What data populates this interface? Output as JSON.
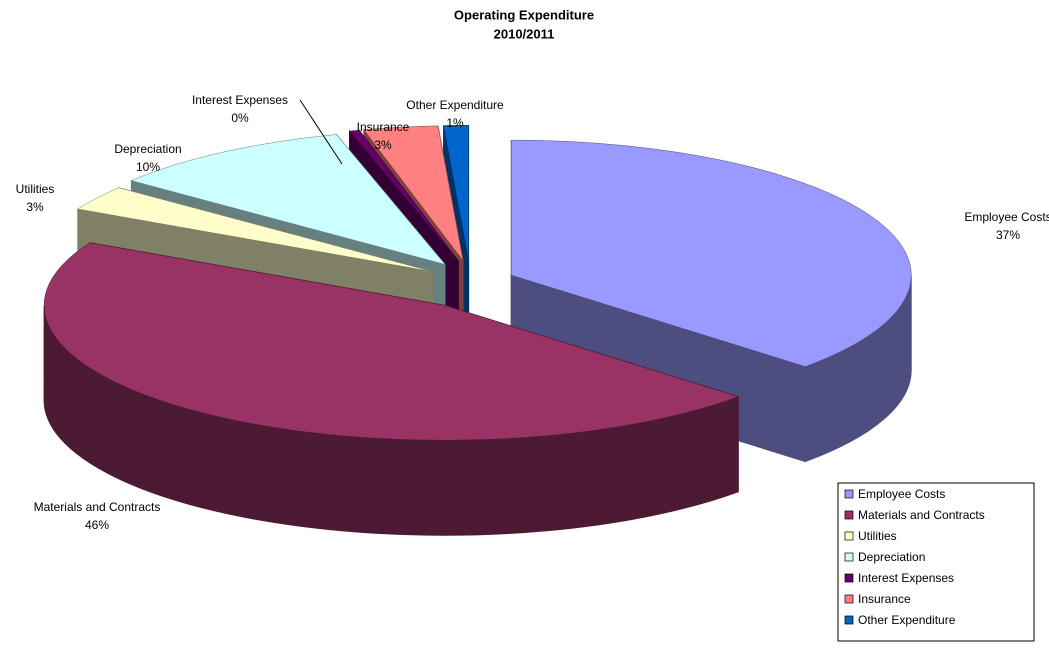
{
  "chart_data": {
    "type": "pie3d",
    "title": "Operating Expenditure",
    "subtitle": "2010/2011",
    "categories": [
      "Employee Costs",
      "Materials and Contracts",
      "Utilities",
      "Depreciation",
      "Interest Expenses",
      "Insurance",
      "Other Expenditure"
    ],
    "values": [
      37,
      46,
      3,
      10,
      0.4,
      3,
      1
    ],
    "value_labels": [
      "37%",
      "46%",
      "3%",
      "10%",
      "0%",
      "3%",
      "1%"
    ],
    "colors": [
      "#9999ff",
      "#993366",
      "#ffffcc",
      "#ccffff",
      "#660066",
      "#ff8080",
      "#0066cc"
    ],
    "legend": "bottom-right"
  }
}
